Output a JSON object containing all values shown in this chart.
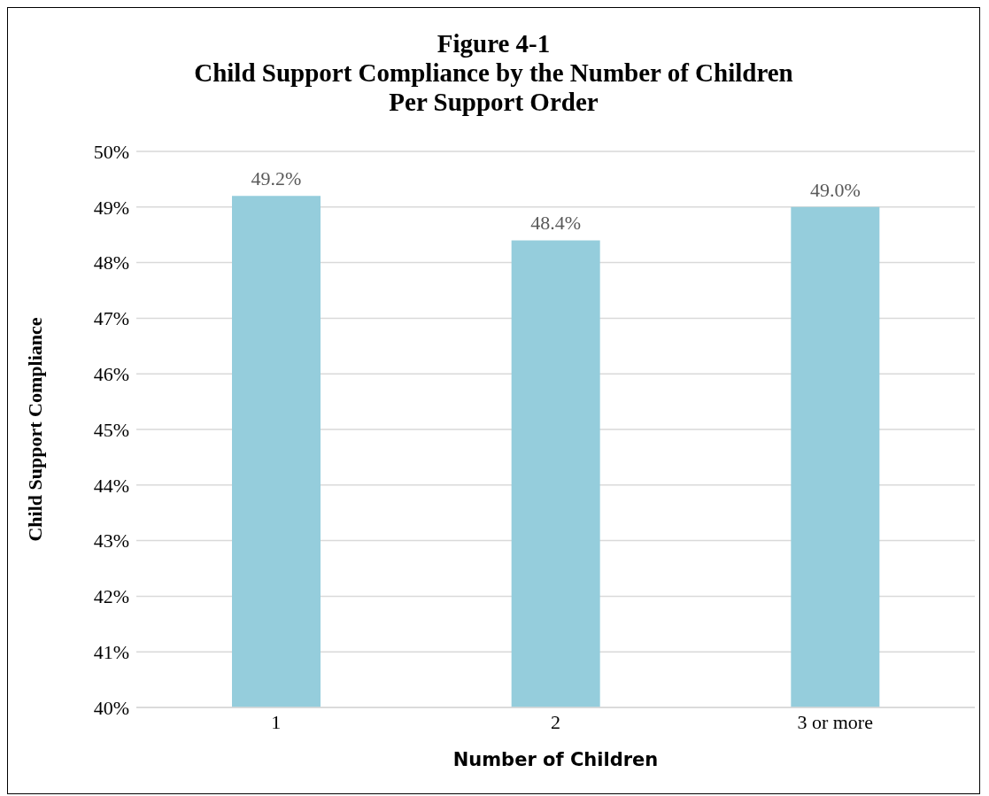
{
  "chart_data": {
    "type": "bar",
    "title": "Figure 4-1\nChild Support Compliance by the Number of Children\nPer Support Order",
    "xlabel": "Number of Children",
    "ylabel": "Child Support Compliance",
    "categories": [
      "1",
      "2",
      "3 or more"
    ],
    "values": [
      49.2,
      48.4,
      49.0
    ],
    "value_labels": [
      "49.2%",
      "48.4%",
      "49.0%"
    ],
    "color": "#95cddc",
    "ylim": [
      40,
      50
    ],
    "yticks": [
      {
        "value": 40,
        "label": "40%"
      },
      {
        "value": 41,
        "label": "41%"
      },
      {
        "value": 42,
        "label": "42%"
      },
      {
        "value": 43,
        "label": "43%"
      },
      {
        "value": 44,
        "label": "44%"
      },
      {
        "value": 45,
        "label": "45%"
      },
      {
        "value": 46,
        "label": "46%"
      },
      {
        "value": 47,
        "label": "47%"
      },
      {
        "value": 48,
        "label": "48%"
      },
      {
        "value": 49,
        "label": "49%"
      },
      {
        "value": 50,
        "label": "50%"
      }
    ],
    "grid": "y"
  }
}
